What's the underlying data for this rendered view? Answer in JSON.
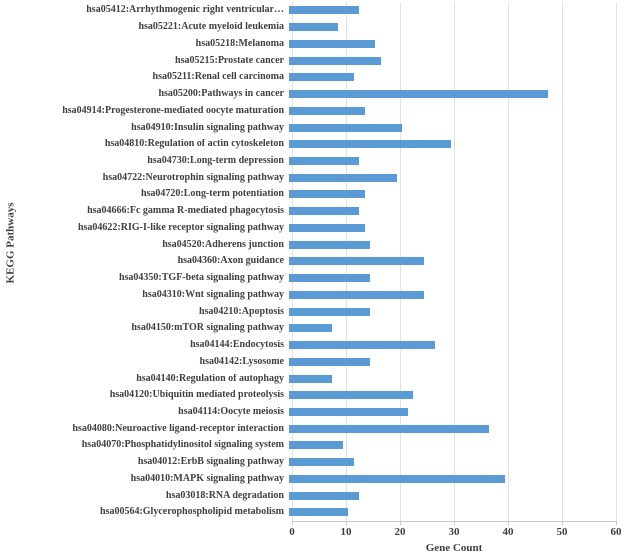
{
  "chart_data": {
    "type": "bar",
    "orientation": "horizontal",
    "title": "",
    "xlabel": "Gene Count",
    "ylabel": "KEGG Pathways",
    "xlim": [
      0,
      60
    ],
    "x_ticks": [
      "0",
      "10",
      "20",
      "30",
      "40",
      "50",
      "60"
    ],
    "grid": "vertical",
    "legend": "none",
    "bar_color": "#5B9BD5",
    "gridline_color": "#e2e2e2",
    "text_color": "#404040",
    "categories": [
      "hsa05412:Arrhythmogenic right ventricular…",
      "hsa05221:Acute myeloid leukemia",
      "hsa05218:Melanoma",
      "hsa05215:Prostate cancer",
      "hsa05211:Renal cell carcinoma",
      "hsa05200:Pathways in cancer",
      "hsa04914:Progesterone-mediated oocyte maturation",
      "hsa04910:Insulin signaling pathway",
      "hsa04810:Regulation of actin cytoskeleton",
      "hsa04730:Long-term depression",
      "hsa04722:Neurotrophin signaling pathway",
      "hsa04720:Long-term potentiation",
      "hsa04666:Fc gamma R-mediated phagocytosis",
      "hsa04622:RIG-I-like receptor signaling pathway",
      "hsa04520:Adherens junction",
      "hsa04360:Axon guidance",
      "hsa04350:TGF-beta signaling pathway",
      "hsa04310:Wnt signaling pathway",
      "hsa04210:Apoptosis",
      "hsa04150:mTOR signaling pathway",
      "hsa04144:Endocytosis",
      "hsa04142:Lysosome",
      "hsa04140:Regulation of autophagy",
      "hsa04120:Ubiquitin mediated proteolysis",
      "hsa04114:Oocyte meiosis",
      "hsa04080:Neuroactive ligand-receptor interaction",
      "hsa04070:Phosphatidylinositol signaling system",
      "hsa04012:ErbB signaling pathway",
      "hsa04010:MAPK signaling pathway",
      "hsa03018:RNA degradation",
      "hsa00564:Glycerophospholipid metabolism"
    ],
    "values": [
      13,
      9,
      16,
      17,
      12,
      48,
      14,
      21,
      30,
      13,
      20,
      14,
      13,
      14,
      15,
      25,
      15,
      25,
      15,
      8,
      27,
      15,
      8,
      23,
      22,
      37,
      10,
      12,
      40,
      13,
      11
    ]
  }
}
